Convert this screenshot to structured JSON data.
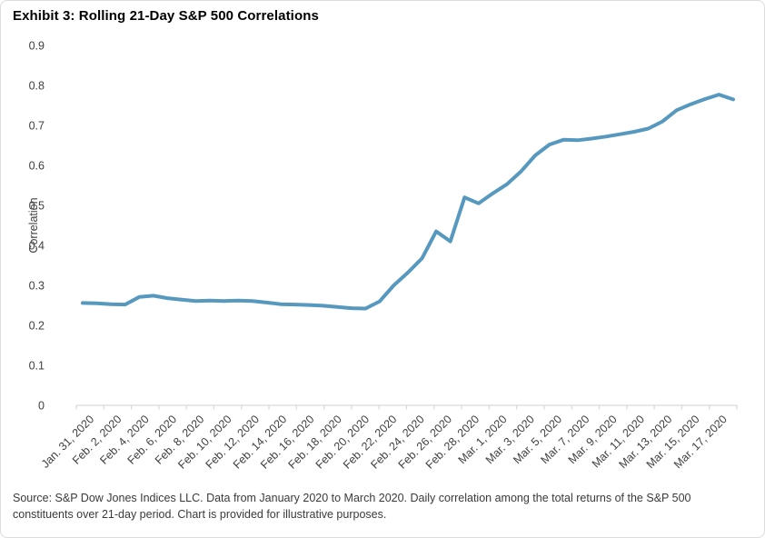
{
  "card": {
    "title": "Exhibit 3: Rolling 21-Day S&P 500 Correlations",
    "source_note": "Source: S&P Dow Jones Indices LLC. Data from January 2020 to March 2020. Daily correlation among the total returns of the S&P 500 constituents over 21-day period. Chart is provided for illustrative purposes."
  },
  "chart_data": {
    "type": "line",
    "title": "Exhibit 3: Rolling 21-Day S&P 500 Correlations",
    "xlabel": "",
    "ylabel": "Correlation",
    "ylim": [
      0,
      0.9
    ],
    "ytick_step": 0.1,
    "grid": false,
    "legend_position": "none",
    "line_color": "#5698be",
    "axis_color": "#d9d9d9",
    "tick_label_color": "#404040",
    "y_tick_labels": [
      "0",
      "0.1",
      "0.2",
      "0.3",
      "0.4",
      "0.5",
      "0.6",
      "0.7",
      "0.8",
      "0.9"
    ],
    "x_tick_labels": [
      "Jan. 31, 2020",
      "Feb. 2, 2020",
      "Feb. 4, 2020",
      "Feb. 6, 2020",
      "Feb. 8, 2020",
      "Feb. 10, 2020",
      "Feb. 12, 2020",
      "Feb. 14, 2020",
      "Feb. 16, 2020",
      "Feb. 18, 2020",
      "Feb. 20, 2020",
      "Feb. 22, 2020",
      "Feb. 24, 2020",
      "Feb. 26, 2020",
      "Feb. 28, 2020",
      "Mar. 1, 2020",
      "Mar. 3, 2020",
      "Mar. 5, 2020",
      "Mar. 7, 2020",
      "Mar. 9, 2020",
      "Mar. 11, 2020",
      "Mar. 13, 2020",
      "Mar. 15, 2020",
      "Mar. 17, 2020"
    ],
    "series": [
      {
        "name": "Rolling 21-day S&P 500 correlation",
        "dates": [
          "Jan. 31, 2020",
          "Feb. 1, 2020",
          "Feb. 2, 2020",
          "Feb. 3, 2020",
          "Feb. 4, 2020",
          "Feb. 5, 2020",
          "Feb. 6, 2020",
          "Feb. 7, 2020",
          "Feb. 8, 2020",
          "Feb. 9, 2020",
          "Feb. 10, 2020",
          "Feb. 11, 2020",
          "Feb. 12, 2020",
          "Feb. 13, 2020",
          "Feb. 14, 2020",
          "Feb. 15, 2020",
          "Feb. 16, 2020",
          "Feb. 17, 2020",
          "Feb. 18, 2020",
          "Feb. 19, 2020",
          "Feb. 20, 2020",
          "Feb. 21, 2020",
          "Feb. 22, 2020",
          "Feb. 23, 2020",
          "Feb. 24, 2020",
          "Feb. 25, 2020",
          "Feb. 26, 2020",
          "Feb. 27, 2020",
          "Feb. 28, 2020",
          "Feb. 29, 2020",
          "Mar. 1, 2020",
          "Mar. 2, 2020",
          "Mar. 3, 2020",
          "Mar. 4, 2020",
          "Mar. 5, 2020",
          "Mar. 6, 2020",
          "Mar. 7, 2020",
          "Mar. 8, 2020",
          "Mar. 9, 2020",
          "Mar. 10, 2020",
          "Mar. 11, 2020",
          "Mar. 12, 2020",
          "Mar. 13, 2020",
          "Mar. 14, 2020",
          "Mar. 15, 2020",
          "Mar. 16, 2020",
          "Mar. 17, 2020"
        ],
        "values": [
          0.256,
          0.255,
          0.253,
          0.252,
          0.271,
          0.274,
          0.268,
          0.264,
          0.261,
          0.262,
          0.261,
          0.262,
          0.261,
          0.257,
          0.253,
          0.252,
          0.251,
          0.249,
          0.246,
          0.243,
          0.242,
          0.26,
          0.3,
          0.332,
          0.368,
          0.435,
          0.41,
          0.52,
          0.505,
          0.53,
          0.553,
          0.585,
          0.625,
          0.652,
          0.664,
          0.663,
          0.667,
          0.672,
          0.678,
          0.684,
          0.692,
          0.71,
          0.738,
          0.753,
          0.766,
          0.777,
          0.765
        ]
      }
    ]
  }
}
